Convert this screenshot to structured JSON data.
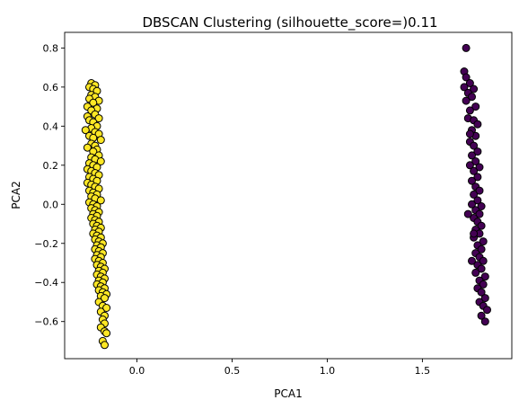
{
  "chart_data": {
    "type": "scatter",
    "title": "DBSCAN Clustering (silhouette_score=)0.11",
    "xlabel": "PCA1",
    "ylabel": "PCA2",
    "xlim": [
      -0.38,
      1.97
    ],
    "ylim": [
      -0.79,
      0.88
    ],
    "xticks": [
      {
        "value": 0.0,
        "label": "0.0"
      },
      {
        "value": 0.5,
        "label": "0.5"
      },
      {
        "value": 1.0,
        "label": "1.0"
      },
      {
        "value": 1.5,
        "label": "1.5"
      }
    ],
    "yticks": [
      {
        "value": -0.6,
        "label": "−0.6"
      },
      {
        "value": -0.4,
        "label": "−0.4"
      },
      {
        "value": -0.2,
        "label": "−0.2"
      },
      {
        "value": 0.0,
        "label": "0.0"
      },
      {
        "value": 0.2,
        "label": "0.2"
      },
      {
        "value": 0.4,
        "label": "0.4"
      },
      {
        "value": 0.6,
        "label": "0.6"
      },
      {
        "value": 0.8,
        "label": "0.8"
      }
    ],
    "grid": false,
    "marker_edge_color": "#000000",
    "clusters": [
      {
        "color": "#fde725",
        "points": [
          [
            -0.24,
            0.62
          ],
          [
            -0.22,
            0.61
          ],
          [
            -0.25,
            0.6
          ],
          [
            -0.23,
            0.59
          ],
          [
            -0.21,
            0.58
          ],
          [
            -0.24,
            0.56
          ],
          [
            -0.22,
            0.55
          ],
          [
            -0.25,
            0.54
          ],
          [
            -0.2,
            0.53
          ],
          [
            -0.23,
            0.52
          ],
          [
            -0.26,
            0.5
          ],
          [
            -0.21,
            0.49
          ],
          [
            -0.24,
            0.48
          ],
          [
            -0.22,
            0.46
          ],
          [
            -0.26,
            0.45
          ],
          [
            -0.2,
            0.44
          ],
          [
            -0.25,
            0.43
          ],
          [
            -0.23,
            0.42
          ],
          [
            -0.21,
            0.4
          ],
          [
            -0.24,
            0.39
          ],
          [
            -0.27,
            0.38
          ],
          [
            -0.22,
            0.37
          ],
          [
            -0.2,
            0.36
          ],
          [
            -0.25,
            0.35
          ],
          [
            -0.23,
            0.34
          ],
          [
            -0.19,
            0.33
          ],
          [
            -0.24,
            0.31
          ],
          [
            -0.22,
            0.3
          ],
          [
            -0.26,
            0.29
          ],
          [
            -0.21,
            0.28
          ],
          [
            -0.23,
            0.27
          ],
          [
            -0.2,
            0.25
          ],
          [
            -0.24,
            0.24
          ],
          [
            -0.22,
            0.23
          ],
          [
            -0.19,
            0.22
          ],
          [
            -0.25,
            0.21
          ],
          [
            -0.23,
            0.2
          ],
          [
            -0.21,
            0.19
          ],
          [
            -0.26,
            0.18
          ],
          [
            -0.24,
            0.17
          ],
          [
            -0.22,
            0.16
          ],
          [
            -0.2,
            0.15
          ],
          [
            -0.25,
            0.14
          ],
          [
            -0.23,
            0.13
          ],
          [
            -0.21,
            0.12
          ],
          [
            -0.26,
            0.11
          ],
          [
            -0.24,
            0.1
          ],
          [
            -0.22,
            0.09
          ],
          [
            -0.2,
            0.08
          ],
          [
            -0.25,
            0.07
          ],
          [
            -0.23,
            0.06
          ],
          [
            -0.21,
            0.05
          ],
          [
            -0.24,
            0.04
          ],
          [
            -0.22,
            0.03
          ],
          [
            -0.19,
            0.02
          ],
          [
            -0.25,
            0.01
          ],
          [
            -0.23,
            0.0
          ],
          [
            -0.21,
            -0.01
          ],
          [
            -0.24,
            -0.02
          ],
          [
            -0.22,
            -0.03
          ],
          [
            -0.2,
            -0.04
          ],
          [
            -0.23,
            -0.05
          ],
          [
            -0.21,
            -0.06
          ],
          [
            -0.24,
            -0.07
          ],
          [
            -0.22,
            -0.08
          ],
          [
            -0.2,
            -0.09
          ],
          [
            -0.23,
            -0.1
          ],
          [
            -0.21,
            -0.11
          ],
          [
            -0.19,
            -0.12
          ],
          [
            -0.22,
            -0.13
          ],
          [
            -0.2,
            -0.14
          ],
          [
            -0.23,
            -0.15
          ],
          [
            -0.21,
            -0.16
          ],
          [
            -0.19,
            -0.17
          ],
          [
            -0.22,
            -0.18
          ],
          [
            -0.2,
            -0.19
          ],
          [
            -0.18,
            -0.2
          ],
          [
            -0.21,
            -0.21
          ],
          [
            -0.19,
            -0.22
          ],
          [
            -0.22,
            -0.23
          ],
          [
            -0.2,
            -0.24
          ],
          [
            -0.18,
            -0.25
          ],
          [
            -0.21,
            -0.26
          ],
          [
            -0.19,
            -0.27
          ],
          [
            -0.22,
            -0.28
          ],
          [
            -0.2,
            -0.29
          ],
          [
            -0.18,
            -0.3
          ],
          [
            -0.21,
            -0.31
          ],
          [
            -0.19,
            -0.32
          ],
          [
            -0.17,
            -0.33
          ],
          [
            -0.2,
            -0.34
          ],
          [
            -0.18,
            -0.35
          ],
          [
            -0.21,
            -0.36
          ],
          [
            -0.19,
            -0.37
          ],
          [
            -0.17,
            -0.38
          ],
          [
            -0.2,
            -0.39
          ],
          [
            -0.18,
            -0.4
          ],
          [
            -0.21,
            -0.41
          ],
          [
            -0.19,
            -0.42
          ],
          [
            -0.17,
            -0.43
          ],
          [
            -0.2,
            -0.44
          ],
          [
            -0.18,
            -0.45
          ],
          [
            -0.16,
            -0.46
          ],
          [
            -0.19,
            -0.47
          ],
          [
            -0.17,
            -0.48
          ],
          [
            -0.2,
            -0.5
          ],
          [
            -0.18,
            -0.52
          ],
          [
            -0.16,
            -0.53
          ],
          [
            -0.19,
            -0.55
          ],
          [
            -0.17,
            -0.57
          ],
          [
            -0.18,
            -0.59
          ],
          [
            -0.17,
            -0.61
          ],
          [
            -0.19,
            -0.63
          ],
          [
            -0.17,
            -0.65
          ],
          [
            -0.16,
            -0.66
          ],
          [
            -0.18,
            -0.7
          ],
          [
            -0.17,
            -0.72
          ]
        ]
      },
      {
        "color": "#440154",
        "points": [
          [
            1.73,
            0.8
          ],
          [
            1.72,
            0.68
          ],
          [
            1.73,
            0.65
          ],
          [
            1.75,
            0.62
          ],
          [
            1.72,
            0.6
          ],
          [
            1.77,
            0.59
          ],
          [
            1.74,
            0.57
          ],
          [
            1.76,
            0.55
          ],
          [
            1.73,
            0.53
          ],
          [
            1.78,
            0.5
          ],
          [
            1.75,
            0.48
          ],
          [
            1.74,
            0.44
          ],
          [
            1.77,
            0.43
          ],
          [
            1.79,
            0.41
          ],
          [
            1.76,
            0.38
          ],
          [
            1.78,
            0.35
          ],
          [
            1.75,
            0.32
          ],
          [
            1.77,
            0.3
          ],
          [
            1.79,
            0.27
          ],
          [
            1.76,
            0.25
          ],
          [
            1.78,
            0.22
          ],
          [
            1.75,
            0.2
          ],
          [
            1.8,
            0.19
          ],
          [
            1.77,
            0.17
          ],
          [
            1.79,
            0.14
          ],
          [
            1.76,
            0.12
          ],
          [
            1.78,
            0.09
          ],
          [
            1.8,
            0.07
          ],
          [
            1.77,
            0.05
          ],
          [
            1.79,
            0.02
          ],
          [
            1.76,
            0.0
          ],
          [
            1.81,
            -0.01
          ],
          [
            1.78,
            -0.03
          ],
          [
            1.8,
            -0.05
          ],
          [
            1.77,
            -0.07
          ],
          [
            1.79,
            -0.09
          ],
          [
            1.81,
            -0.11
          ],
          [
            1.78,
            -0.13
          ],
          [
            1.8,
            -0.15
          ],
          [
            1.77,
            -0.17
          ],
          [
            1.82,
            -0.19
          ],
          [
            1.79,
            -0.21
          ],
          [
            1.81,
            -0.23
          ],
          [
            1.78,
            -0.25
          ],
          [
            1.8,
            -0.27
          ],
          [
            1.82,
            -0.29
          ],
          [
            1.79,
            -0.31
          ],
          [
            1.81,
            -0.33
          ],
          [
            1.78,
            -0.35
          ],
          [
            1.83,
            -0.37
          ],
          [
            1.8,
            -0.39
          ],
          [
            1.82,
            -0.41
          ],
          [
            1.79,
            -0.43
          ],
          [
            1.81,
            -0.45
          ],
          [
            1.83,
            -0.48
          ],
          [
            1.8,
            -0.5
          ],
          [
            1.82,
            -0.52
          ],
          [
            1.84,
            -0.54
          ],
          [
            1.81,
            -0.57
          ],
          [
            1.83,
            -0.6
          ],
          [
            1.74,
            -0.05
          ],
          [
            1.75,
            0.36
          ],
          [
            1.76,
            -0.29
          ],
          [
            1.77,
            -0.15
          ]
        ]
      }
    ]
  }
}
